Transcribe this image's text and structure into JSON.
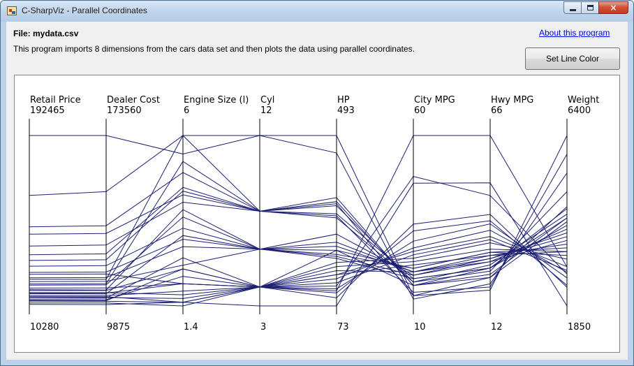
{
  "window": {
    "title": "C-SharpViz - Parallel Coordinates",
    "close_glyph": "×"
  },
  "header": {
    "file_label": "File: mydata.csv",
    "description": "This program imports 8 dimensions from the cars data set and then plots the data using parallel coordinates.",
    "about_link": "About this program",
    "set_color_button": "Set Line Color"
  },
  "colors": {
    "line_color": "#1c1f72",
    "axis_color": "#000000"
  },
  "chart_data": {
    "type": "parallel-coordinates",
    "axes": [
      {
        "name": "Retail Price",
        "max": "192465",
        "min": "10280",
        "vmax": 192465,
        "vmin": 10280
      },
      {
        "name": "Dealer Cost",
        "max": "173560",
        "min": "9875",
        "vmax": 173560,
        "vmin": 9875
      },
      {
        "name": "Engine Size (l)",
        "max": "6",
        "min": "1.4",
        "vmax": 6,
        "vmin": 1.4
      },
      {
        "name": "Cyl",
        "max": "12",
        "min": "3",
        "vmax": 12,
        "vmin": 3
      },
      {
        "name": "HP",
        "max": "493",
        "min": "73",
        "vmax": 493,
        "vmin": 73
      },
      {
        "name": "City MPG",
        "max": "60",
        "min": "10",
        "vmax": 60,
        "vmin": 10
      },
      {
        "name": "Hwy MPG",
        "max": "66",
        "min": "12",
        "vmax": 66,
        "vmin": 12
      },
      {
        "name": "Weight",
        "max": "6400",
        "min": "1850",
        "vmax": 6400,
        "vmin": 1850
      }
    ],
    "series": [
      {
        "values": [
          192465,
          173560,
          5.5,
          12,
          493,
          13,
          21,
          4100
        ]
      },
      {
        "values": [
          128420,
          119600,
          6.0,
          12,
          450,
          12,
          19,
          5400
        ]
      },
      {
        "values": [
          94820,
          86880,
          5.0,
          8,
          330,
          16,
          24,
          4450
        ]
      },
      {
        "values": [
          86970,
          79540,
          4.4,
          8,
          320,
          17,
          25,
          4300
        ]
      },
      {
        "values": [
          74320,
          68350,
          4.2,
          8,
          300,
          18,
          24,
          4000
        ]
      },
      {
        "values": [
          65000,
          59910,
          4.6,
          8,
          290,
          17,
          23,
          4900
        ]
      },
      {
        "values": [
          52800,
          48600,
          3.5,
          6,
          250,
          19,
          26,
          3900
        ]
      },
      {
        "values": [
          46100,
          42410,
          3.2,
          6,
          230,
          20,
          27,
          3700
        ]
      },
      {
        "values": [
          40300,
          37100,
          3.0,
          6,
          220,
          20,
          28,
          3500
        ]
      },
      {
        "values": [
          36200,
          33400,
          2.5,
          6,
          200,
          21,
          29,
          3400
        ]
      },
      {
        "values": [
          32500,
          30100,
          3.8,
          6,
          195,
          19,
          27,
          3800
        ]
      },
      {
        "values": [
          29400,
          27200,
          2.0,
          4,
          180,
          24,
          32,
          3100
        ]
      },
      {
        "values": [
          26800,
          24700,
          2.4,
          4,
          170,
          23,
          30,
          3300
        ]
      },
      {
        "values": [
          24100,
          22300,
          2.0,
          4,
          150,
          26,
          34,
          2900
        ]
      },
      {
        "values": [
          21500,
          19900,
          1.8,
          4,
          140,
          27,
          36,
          2750
        ]
      },
      {
        "values": [
          19200,
          17900,
          1.6,
          4,
          115,
          29,
          38,
          2600
        ]
      },
      {
        "values": [
          17100,
          15900,
          2.2,
          4,
          130,
          25,
          33,
          2800
        ]
      },
      {
        "values": [
          15400,
          14300,
          1.5,
          4,
          105,
          32,
          39,
          2400
        ]
      },
      {
        "values": [
          13500,
          12700,
          1.4,
          4,
          93,
          34,
          41,
          2350
        ]
      },
      {
        "values": [
          11900,
          11200,
          1.5,
          3,
          73,
          46,
          51,
          1850
        ]
      },
      {
        "values": [
          20300,
          18700,
          1.5,
          4,
          110,
          60,
          66,
          2890
        ]
      },
      {
        "values": [
          24500,
          22600,
          1.7,
          4,
          122,
          48,
          47,
          2700
        ]
      },
      {
        "values": [
          33800,
          31100,
          5.3,
          8,
          295,
          14,
          18,
          5900
        ]
      },
      {
        "values": [
          38700,
          35400,
          6.0,
          8,
          325,
          13,
          17,
          6400
        ]
      },
      {
        "values": [
          27600,
          25200,
          4.0,
          6,
          210,
          16,
          21,
          4500
        ]
      },
      {
        "values": [
          23400,
          21500,
          3.3,
          6,
          190,
          18,
          24,
          4200
        ]
      },
      {
        "values": [
          18900,
          17400,
          2.7,
          4,
          160,
          20,
          26,
          3600
        ]
      },
      {
        "values": [
          16200,
          14900,
          2.4,
          4,
          150,
          22,
          28,
          3300
        ]
      },
      {
        "values": [
          44000,
          40500,
          2.0,
          4,
          210,
          21,
          29,
          3200
        ]
      },
      {
        "values": [
          58900,
          54200,
          4.5,
          8,
          340,
          16,
          22,
          4200
        ]
      }
    ]
  }
}
